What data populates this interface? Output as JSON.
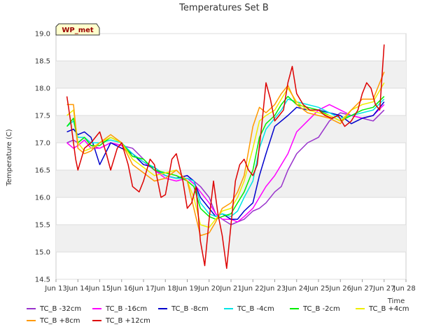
{
  "chart_data": {
    "type": "line",
    "title": "Temperatures Set B",
    "xlabel": "Time",
    "ylabel": "Temperature (C)",
    "badge": "WP_met",
    "ylim": [
      14.5,
      19.0
    ],
    "xlim": [
      0,
      16
    ],
    "yticks": [
      14.5,
      15.0,
      15.5,
      16.0,
      16.5,
      17.0,
      17.5,
      18.0,
      18.5,
      19.0
    ],
    "yticklabels": [
      "14.5",
      "15.0",
      "15.5",
      "16.0",
      "16.5",
      "17.0",
      "17.5",
      "18.0",
      "18.5",
      "19.0"
    ],
    "xticks": [
      0,
      1,
      2,
      3,
      4,
      5,
      6,
      7,
      8,
      9,
      10,
      11,
      12,
      13,
      14,
      15,
      16
    ],
    "xticklabels": [
      "Jun 13",
      "Jun 14",
      "Jun 15",
      "Jun 16",
      "Jun 17",
      "Jun 18",
      "Jun 19",
      "Jun 20",
      "Jun 21",
      "Jun 22",
      "Jun 23",
      "Jun 24",
      "Jun 25",
      "Jun 26",
      "Jun 27",
      "Jun 28",
      ""
    ],
    "grid": true,
    "legend_position": "bottom",
    "x_units": "days since Jun 12",
    "series": [
      {
        "name": "TC_B -32cm",
        "color": "#9933cc",
        "x": [
          0.5,
          0.8,
          1.0,
          1.3,
          1.6,
          2.0,
          2.5,
          3.0,
          3.5,
          4.0,
          4.5,
          5.0,
          5.5,
          6.0,
          6.3,
          6.6,
          7.0,
          7.3,
          7.6,
          8.0,
          8.3,
          8.6,
          9.0,
          9.3,
          9.6,
          10.0,
          10.3,
          10.6,
          11.0,
          11.5,
          12.0,
          12.5,
          13.0,
          13.5,
          14.0,
          14.5,
          15.0
        ],
        "y": [
          17.0,
          17.05,
          17.0,
          17.1,
          16.95,
          16.9,
          17.0,
          16.95,
          16.9,
          16.7,
          16.5,
          16.4,
          16.35,
          16.4,
          16.3,
          16.2,
          16.0,
          15.7,
          15.6,
          15.5,
          15.55,
          15.6,
          15.75,
          15.8,
          15.9,
          16.1,
          16.2,
          16.5,
          16.8,
          17.0,
          17.1,
          17.4,
          17.55,
          17.5,
          17.45,
          17.4,
          17.6
        ]
      },
      {
        "name": "TC_B -16cm",
        "color": "#ff00ff",
        "x": [
          0.5,
          0.8,
          1.0,
          1.3,
          1.6,
          2.0,
          2.5,
          3.0,
          3.5,
          4.0,
          4.5,
          5.0,
          5.5,
          6.0,
          6.3,
          6.6,
          7.0,
          7.3,
          7.6,
          8.0,
          8.3,
          8.6,
          9.0,
          9.3,
          9.6,
          10.0,
          10.3,
          10.6,
          11.0,
          11.5,
          12.0,
          12.5,
          13.0,
          13.5,
          14.0,
          14.5,
          15.0
        ],
        "y": [
          17.0,
          16.9,
          16.95,
          17.05,
          16.9,
          16.9,
          17.0,
          16.95,
          16.8,
          16.65,
          16.5,
          16.35,
          16.3,
          16.35,
          16.25,
          16.1,
          15.9,
          15.7,
          15.6,
          15.6,
          15.55,
          15.65,
          15.8,
          16.0,
          16.2,
          16.4,
          16.6,
          16.8,
          17.2,
          17.4,
          17.6,
          17.7,
          17.6,
          17.5,
          17.45,
          17.5,
          17.7
        ]
      },
      {
        "name": "TC_B -8cm",
        "color": "#0000cc",
        "x": [
          0.5,
          0.8,
          1.0,
          1.3,
          1.6,
          2.0,
          2.5,
          3.0,
          3.5,
          4.0,
          4.5,
          5.0,
          5.5,
          6.0,
          6.3,
          6.6,
          7.0,
          7.3,
          7.6,
          8.0,
          8.3,
          8.6,
          9.0,
          9.3,
          9.6,
          10.0,
          10.3,
          10.6,
          11.0,
          11.5,
          12.0,
          12.5,
          13.0,
          13.5,
          14.0,
          14.5,
          15.0
        ],
        "y": [
          17.2,
          17.25,
          17.15,
          17.2,
          17.1,
          16.6,
          17.0,
          16.9,
          16.8,
          16.6,
          16.55,
          16.4,
          16.35,
          16.4,
          16.3,
          16.0,
          15.8,
          15.65,
          15.7,
          15.6,
          15.6,
          15.75,
          15.9,
          16.4,
          16.8,
          17.3,
          17.4,
          17.5,
          17.65,
          17.6,
          17.6,
          17.55,
          17.5,
          17.35,
          17.45,
          17.5,
          17.75
        ]
      },
      {
        "name": "TC_B -4cm",
        "color": "#00e5e5",
        "x": [
          0.5,
          0.8,
          1.0,
          1.3,
          1.6,
          2.0,
          2.5,
          3.0,
          3.5,
          4.0,
          4.5,
          5.0,
          5.5,
          6.0,
          6.3,
          6.6,
          7.0,
          7.3,
          7.6,
          8.0,
          8.3,
          8.6,
          9.0,
          9.3,
          9.6,
          10.0,
          10.3,
          10.6,
          11.0,
          11.5,
          12.0,
          12.5,
          13.0,
          13.5,
          14.0,
          14.5,
          15.0
        ],
        "y": [
          17.3,
          17.4,
          17.1,
          17.1,
          17.0,
          17.0,
          17.05,
          17.0,
          16.8,
          16.65,
          16.55,
          16.4,
          16.35,
          16.35,
          16.3,
          15.9,
          15.7,
          15.65,
          15.7,
          15.65,
          15.75,
          16.0,
          16.3,
          16.9,
          17.25,
          17.45,
          17.6,
          17.8,
          17.75,
          17.7,
          17.65,
          17.55,
          17.45,
          17.5,
          17.55,
          17.6,
          17.8
        ]
      },
      {
        "name": "TC_B -2cm",
        "color": "#00ee00",
        "x": [
          0.5,
          0.8,
          1.0,
          1.3,
          1.6,
          2.0,
          2.5,
          3.0,
          3.5,
          4.0,
          4.5,
          5.0,
          5.5,
          6.0,
          6.3,
          6.6,
          7.0,
          7.3,
          7.6,
          8.0,
          8.3,
          8.6,
          9.0,
          9.3,
          9.6,
          10.0,
          10.3,
          10.6,
          11.0,
          11.5,
          12.0,
          12.5,
          13.0,
          13.5,
          14.0,
          14.5,
          15.0
        ],
        "y": [
          17.3,
          17.45,
          17.0,
          17.1,
          16.95,
          16.95,
          17.1,
          17.0,
          16.75,
          16.7,
          16.5,
          16.45,
          16.4,
          16.3,
          16.2,
          15.8,
          15.65,
          15.6,
          15.65,
          15.7,
          15.9,
          16.1,
          16.5,
          17.1,
          17.35,
          17.5,
          17.7,
          17.85,
          17.7,
          17.65,
          17.6,
          17.5,
          17.4,
          17.5,
          17.6,
          17.65,
          17.85
        ]
      },
      {
        "name": "TC_B +4cm",
        "color": "#eeee00",
        "x": [
          0.5,
          0.8,
          1.0,
          1.3,
          1.6,
          2.0,
          2.5,
          3.0,
          3.5,
          4.0,
          4.5,
          5.0,
          5.5,
          6.0,
          6.3,
          6.6,
          7.0,
          7.3,
          7.6,
          8.0,
          8.3,
          8.6,
          9.0,
          9.3,
          9.6,
          10.0,
          10.3,
          10.6,
          11.0,
          11.5,
          12.0,
          12.5,
          13.0,
          13.5,
          14.0,
          14.5,
          15.0
        ],
        "y": [
          17.5,
          17.6,
          17.0,
          16.85,
          16.9,
          17.0,
          17.1,
          17.0,
          16.7,
          16.55,
          16.4,
          16.45,
          16.5,
          16.3,
          16.0,
          15.5,
          15.45,
          15.6,
          15.75,
          15.8,
          16.0,
          16.3,
          16.9,
          17.4,
          17.5,
          17.6,
          17.8,
          18.0,
          17.75,
          17.6,
          17.55,
          17.5,
          17.4,
          17.6,
          17.7,
          17.75,
          18.1
        ]
      },
      {
        "name": "TC_B +8cm",
        "color": "#ff9900",
        "x": [
          0.5,
          0.8,
          1.0,
          1.3,
          1.6,
          2.0,
          2.5,
          3.0,
          3.5,
          4.0,
          4.5,
          5.0,
          5.5,
          6.0,
          6.3,
          6.6,
          7.0,
          7.3,
          7.6,
          8.0,
          8.3,
          8.6,
          9.0,
          9.3,
          9.6,
          10.0,
          10.3,
          10.6,
          11.0,
          11.5,
          12.0,
          12.5,
          13.0,
          13.5,
          14.0,
          14.5,
          15.0
        ],
        "y": [
          17.7,
          17.7,
          16.9,
          16.8,
          16.85,
          17.0,
          17.15,
          17.0,
          16.6,
          16.45,
          16.3,
          16.35,
          16.5,
          16.3,
          15.8,
          15.3,
          15.35,
          15.55,
          15.8,
          15.9,
          16.1,
          16.4,
          17.3,
          17.65,
          17.55,
          17.7,
          17.9,
          18.05,
          17.7,
          17.55,
          17.5,
          17.45,
          17.35,
          17.6,
          17.8,
          17.8,
          18.3
        ]
      },
      {
        "name": "TC_B +12cm",
        "color": "#dd0000",
        "x": [
          0.5,
          0.7,
          0.9,
          1.0,
          1.3,
          1.6,
          2.0,
          2.3,
          2.5,
          2.8,
          3.0,
          3.3,
          3.5,
          3.8,
          4.0,
          4.3,
          4.5,
          4.8,
          5.0,
          5.3,
          5.5,
          5.8,
          6.0,
          6.2,
          6.4,
          6.6,
          6.8,
          7.0,
          7.2,
          7.4,
          7.6,
          7.8,
          8.0,
          8.2,
          8.4,
          8.6,
          8.8,
          9.0,
          9.2,
          9.4,
          9.6,
          9.8,
          10.0,
          10.2,
          10.4,
          10.6,
          10.8,
          11.0,
          11.3,
          11.6,
          12.0,
          12.3,
          12.6,
          12.9,
          13.2,
          13.5,
          13.8,
          14.0,
          14.2,
          14.4,
          14.6,
          14.8,
          15.0
        ],
        "y": [
          17.85,
          17.3,
          16.7,
          16.5,
          16.9,
          17.0,
          17.2,
          16.8,
          16.5,
          16.9,
          17.0,
          16.6,
          16.2,
          16.1,
          16.3,
          16.7,
          16.6,
          16.0,
          16.05,
          16.7,
          16.8,
          16.3,
          15.8,
          15.9,
          16.2,
          15.2,
          14.75,
          15.6,
          16.3,
          15.7,
          15.3,
          14.7,
          15.5,
          16.3,
          16.6,
          16.7,
          16.5,
          16.4,
          16.6,
          17.3,
          18.1,
          17.8,
          17.4,
          17.5,
          17.6,
          18.1,
          18.4,
          17.9,
          17.7,
          17.6,
          17.6,
          17.5,
          17.45,
          17.5,
          17.3,
          17.4,
          17.6,
          17.9,
          18.1,
          18.0,
          17.7,
          17.6,
          18.8
        ]
      }
    ]
  }
}
